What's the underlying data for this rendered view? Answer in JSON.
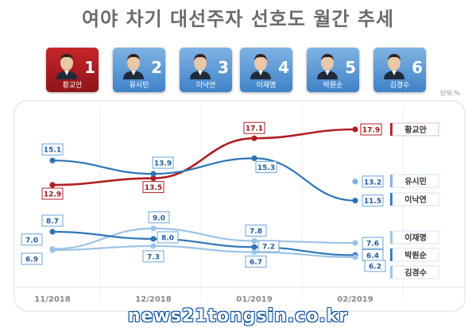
{
  "title": "여야 차기 대선주자 선호도 월간 추세",
  "unit": "단위:%",
  "watermark": "news21tongsin.co.kr",
  "candidates": [
    {
      "rank": "1",
      "name": "황교안",
      "bg": "#b01e23",
      "highlight": true
    },
    {
      "rank": "2",
      "name": "유시민",
      "bg": "#5b9bd5",
      "highlight": false
    },
    {
      "rank": "3",
      "name": "이낙연",
      "bg": "#5b9bd5",
      "highlight": false
    },
    {
      "rank": "4",
      "name": "이재명",
      "bg": "#5b9bd5",
      "highlight": false
    },
    {
      "rank": "5",
      "name": "박원순",
      "bg": "#5b9bd5",
      "highlight": false
    },
    {
      "rank": "6",
      "name": "김경수",
      "bg": "#5b9bd5",
      "highlight": false
    }
  ],
  "chart_data": {
    "type": "line",
    "title": "여야 차기 대선주자 선호도 월간 추세",
    "unit": "단위:%",
    "categories": [
      "11/2018",
      "12/2018",
      "01/2019",
      "02/2019"
    ],
    "series": [
      {
        "name": "황교안",
        "color": "#b01e23",
        "values": [
          12.9,
          13.5,
          17.1,
          17.9
        ],
        "labels": [
          "12.9",
          "13.5",
          "17.1",
          "17.9"
        ]
      },
      {
        "name": "이낙연",
        "color": "#2e75b6",
        "values": [
          15.1,
          13.9,
          15.3,
          11.5
        ],
        "labels": [
          "15.1",
          "13.9",
          "15.3",
          "11.5"
        ]
      },
      {
        "name": "유시민",
        "color": "#7fb0e0",
        "values": [
          null,
          null,
          null,
          13.2
        ],
        "labels": [
          "",
          "",
          "",
          "13.2"
        ]
      },
      {
        "name": "이재명",
        "color": "#9dc3e6",
        "values": [
          7.0,
          9.0,
          7.8,
          7.6
        ],
        "labels": [
          "7.0",
          "9.0",
          "7.8",
          "7.6"
        ]
      },
      {
        "name": "박원순",
        "color": "#2e75b6",
        "values": [
          8.7,
          8.0,
          7.2,
          6.4
        ],
        "labels": [
          "8.7",
          "8.0",
          "7.2",
          "6.4"
        ]
      },
      {
        "name": "김경수",
        "color": "#9dc3e6",
        "values": [
          6.9,
          7.3,
          6.7,
          6.2
        ],
        "labels": [
          "6.9",
          "7.3",
          "6.7",
          "6.2"
        ]
      }
    ],
    "legend_position": "right"
  }
}
